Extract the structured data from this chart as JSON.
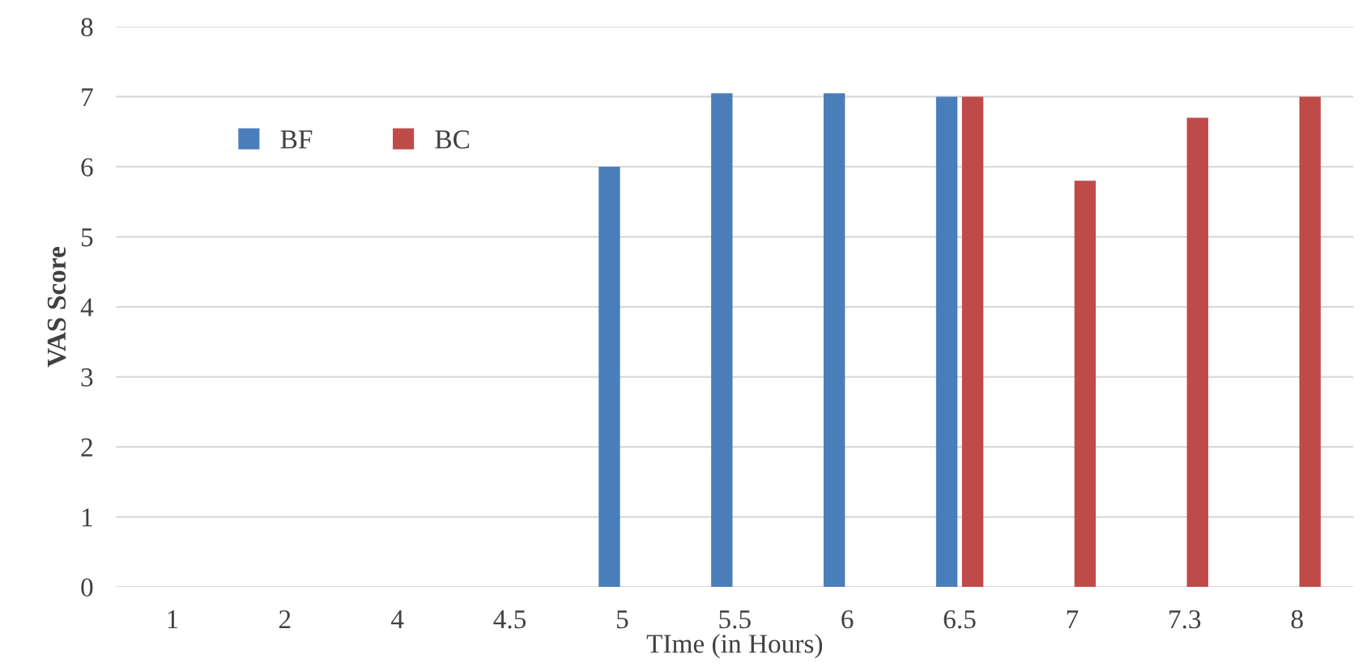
{
  "chart_data": {
    "type": "bar",
    "xlabel": "TIme (in Hours)",
    "ylabel": "VAS Score",
    "categories": [
      "1",
      "2",
      "4",
      "4.5",
      "5",
      "5.5",
      "6",
      "6.5",
      "7",
      "7.3",
      "8"
    ],
    "series": [
      {
        "name": "BF",
        "color": "#4a7ebb",
        "values": [
          null,
          null,
          null,
          null,
          6.0,
          7.05,
          7.05,
          7.0,
          null,
          null,
          null
        ]
      },
      {
        "name": "BC",
        "color": "#be4b48",
        "values": [
          null,
          null,
          null,
          null,
          null,
          null,
          null,
          7.0,
          5.8,
          6.7,
          7.0
        ]
      }
    ],
    "ylim": [
      0,
      8
    ],
    "yticks": [
      0,
      1,
      2,
      3,
      4,
      5,
      6,
      7,
      8
    ],
    "grid": "y",
    "legend": "top left"
  }
}
